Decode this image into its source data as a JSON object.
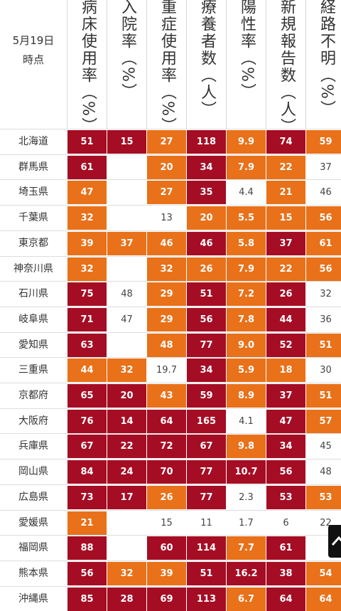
{
  "header": {
    "date_line1": "5月19日",
    "date_line2": "時点",
    "columns": [
      "病床使用率（%）",
      "入院率（%）",
      "重症使用率（%）",
      "療養者数（人）",
      "陽性率（%）",
      "新規報告数（人）",
      "経路不明（%）"
    ]
  },
  "levels_legend": {
    "lv2": "#a50d24",
    "lv1": "#e8711a",
    "lv0": "#ffffff"
  },
  "rows": [
    {
      "pref": "北海道",
      "cells": [
        [
          "51",
          2
        ],
        [
          "15",
          2
        ],
        [
          "27",
          1
        ],
        [
          "118",
          2
        ],
        [
          "9.9",
          1
        ],
        [
          "74",
          2
        ],
        [
          "59",
          1
        ]
      ]
    },
    {
      "pref": "群馬県",
      "cells": [
        [
          "61",
          2
        ],
        [
          "",
          0
        ],
        [
          "20",
          1
        ],
        [
          "34",
          2
        ],
        [
          "7.9",
          1
        ],
        [
          "22",
          1
        ],
        [
          "37",
          0
        ]
      ]
    },
    {
      "pref": "埼玉県",
      "cells": [
        [
          "47",
          1
        ],
        [
          "",
          0
        ],
        [
          "27",
          1
        ],
        [
          "35",
          2
        ],
        [
          "4.4",
          0
        ],
        [
          "21",
          1
        ],
        [
          "46",
          0
        ]
      ]
    },
    {
      "pref": "千葉県",
      "cells": [
        [
          "32",
          1
        ],
        [
          "",
          0
        ],
        [
          "13",
          0
        ],
        [
          "20",
          1
        ],
        [
          "5.5",
          1
        ],
        [
          "15",
          1
        ],
        [
          "56",
          1
        ]
      ]
    },
    {
      "pref": "東京都",
      "cells": [
        [
          "39",
          1
        ],
        [
          "37",
          1
        ],
        [
          "46",
          1
        ],
        [
          "46",
          2
        ],
        [
          "5.8",
          1
        ],
        [
          "37",
          2
        ],
        [
          "61",
          1
        ]
      ]
    },
    {
      "pref": "神奈川県",
      "cells": [
        [
          "32",
          1
        ],
        [
          "",
          0
        ],
        [
          "32",
          1
        ],
        [
          "26",
          1
        ],
        [
          "7.9",
          1
        ],
        [
          "22",
          1
        ],
        [
          "56",
          1
        ]
      ]
    },
    {
      "pref": "石川県",
      "cells": [
        [
          "75",
          2
        ],
        [
          "48",
          0
        ],
        [
          "29",
          1
        ],
        [
          "51",
          2
        ],
        [
          "7.2",
          1
        ],
        [
          "26",
          2
        ],
        [
          "32",
          0
        ]
      ]
    },
    {
      "pref": "岐阜県",
      "cells": [
        [
          "71",
          2
        ],
        [
          "47",
          0
        ],
        [
          "29",
          1
        ],
        [
          "56",
          2
        ],
        [
          "7.8",
          1
        ],
        [
          "44",
          2
        ],
        [
          "36",
          0
        ]
      ]
    },
    {
      "pref": "愛知県",
      "cells": [
        [
          "63",
          2
        ],
        [
          "",
          0
        ],
        [
          "48",
          1
        ],
        [
          "77",
          2
        ],
        [
          "9.0",
          1
        ],
        [
          "52",
          2
        ],
        [
          "51",
          1
        ]
      ]
    },
    {
      "pref": "三重県",
      "cells": [
        [
          "44",
          1
        ],
        [
          "32",
          1
        ],
        [
          "19.7",
          0
        ],
        [
          "34",
          2
        ],
        [
          "5.9",
          1
        ],
        [
          "18",
          1
        ],
        [
          "30",
          0
        ]
      ]
    },
    {
      "pref": "京都府",
      "cells": [
        [
          "65",
          2
        ],
        [
          "20",
          2
        ],
        [
          "43",
          1
        ],
        [
          "59",
          2
        ],
        [
          "8.9",
          1
        ],
        [
          "37",
          2
        ],
        [
          "51",
          1
        ]
      ]
    },
    {
      "pref": "大阪府",
      "cells": [
        [
          "76",
          2
        ],
        [
          "14",
          2
        ],
        [
          "64",
          2
        ],
        [
          "165",
          2
        ],
        [
          "4.1",
          0
        ],
        [
          "47",
          2
        ],
        [
          "57",
          1
        ]
      ]
    },
    {
      "pref": "兵庫県",
      "cells": [
        [
          "67",
          2
        ],
        [
          "22",
          2
        ],
        [
          "72",
          2
        ],
        [
          "67",
          2
        ],
        [
          "9.8",
          1
        ],
        [
          "34",
          2
        ],
        [
          "45",
          0
        ]
      ]
    },
    {
      "pref": "岡山県",
      "cells": [
        [
          "84",
          2
        ],
        [
          "24",
          2
        ],
        [
          "70",
          2
        ],
        [
          "77",
          2
        ],
        [
          "10.7",
          2
        ],
        [
          "56",
          2
        ],
        [
          "48",
          0
        ]
      ]
    },
    {
      "pref": "広島県",
      "cells": [
        [
          "73",
          2
        ],
        [
          "17",
          2
        ],
        [
          "26",
          1
        ],
        [
          "77",
          2
        ],
        [
          "2.3",
          0
        ],
        [
          "53",
          2
        ],
        [
          "53",
          1
        ]
      ]
    },
    {
      "pref": "愛媛県",
      "cells": [
        [
          "21",
          1
        ],
        [
          "",
          0
        ],
        [
          "15",
          0
        ],
        [
          "11",
          0
        ],
        [
          "1.7",
          0
        ],
        [
          "6",
          0
        ],
        [
          "22",
          0
        ]
      ]
    },
    {
      "pref": "福岡県",
      "cells": [
        [
          "88",
          2
        ],
        [
          "",
          0
        ],
        [
          "60",
          2
        ],
        [
          "114",
          2
        ],
        [
          "7.7",
          1
        ],
        [
          "61",
          2
        ],
        [
          "",
          0
        ]
      ]
    },
    {
      "pref": "熊本県",
      "cells": [
        [
          "56",
          2
        ],
        [
          "32",
          1
        ],
        [
          "39",
          1
        ],
        [
          "51",
          2
        ],
        [
          "16.2",
          2
        ],
        [
          "38",
          2
        ],
        [
          "54",
          1
        ]
      ]
    },
    {
      "pref": "沖縄県",
      "cells": [
        [
          "85",
          2
        ],
        [
          "28",
          2
        ],
        [
          "69",
          2
        ],
        [
          "113",
          2
        ],
        [
          "6.7",
          1
        ],
        [
          "64",
          2
        ],
        [
          "64",
          1
        ]
      ]
    }
  ],
  "floating_button": {
    "icon": "chevron-up-icon"
  }
}
